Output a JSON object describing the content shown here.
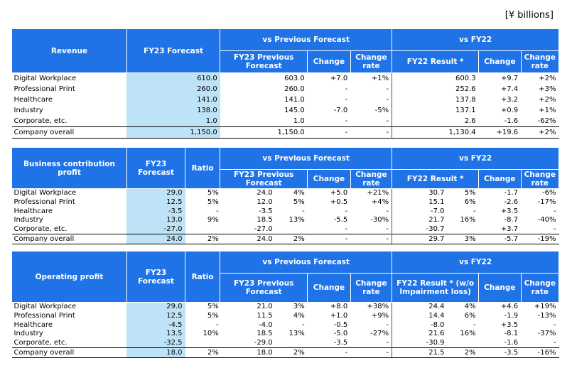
{
  "unit_label": "[¥ billions]",
  "headers": {
    "fy23_forecast": "FY23 Forecast",
    "ratio": "Ratio",
    "vs_prev": "vs Previous Forecast",
    "vs_fy22": "vs FY22",
    "fy23_prev_forecast": "FY23 Previous Forecast",
    "change": "Change",
    "change_rate": "Change rate",
    "fy22_result": "FY22 Result *",
    "fy22_result_wo": "FY22 Result * (w/o Impairment loss)"
  },
  "revenue": {
    "title": "Revenue",
    "rows": [
      {
        "name": "Digital Workplace",
        "fy23": "610.0",
        "prev": "603.0",
        "chg": "+7.0",
        "rate": "+1%",
        "fy22": "600.3",
        "chg2": "+9.7",
        "rate2": "+2%"
      },
      {
        "name": "Professional Print",
        "fy23": "260.0",
        "prev": "260.0",
        "chg": "-",
        "rate": "-",
        "fy22": "252.6",
        "chg2": "+7.4",
        "rate2": "+3%"
      },
      {
        "name": "Healthcare",
        "fy23": "141.0",
        "prev": "141.0",
        "chg": "-",
        "rate": "-",
        "fy22": "137.8",
        "chg2": "+3.2",
        "rate2": "+2%"
      },
      {
        "name": "Industry",
        "fy23": "138.0",
        "prev": "145.0",
        "chg": "-7.0",
        "rate": "-5%",
        "fy22": "137.1",
        "chg2": "+0.9",
        "rate2": "+1%"
      },
      {
        "name": "Corporate, etc.",
        "fy23": "1.0",
        "prev": "1.0",
        "chg": "-",
        "rate": "-",
        "fy22": "2.6",
        "chg2": "-1.6",
        "rate2": "-62%"
      },
      {
        "name": "Company overall",
        "fy23": "1,150.0",
        "prev": "1,150.0",
        "chg": "-",
        "rate": "-",
        "fy22": "1,130.4",
        "chg2": "+19.6",
        "rate2": "+2%"
      }
    ]
  },
  "bcp": {
    "title": "Business contribution profit",
    "rows": [
      {
        "name": "Digital Workplace",
        "fy23": "29.0",
        "ratio": "5%",
        "prev": "24.0",
        "prat": "4%",
        "chg": "+5.0",
        "rate": "+21%",
        "fy22": "30.7",
        "fy22r": "5%",
        "chg2": "-1.7",
        "rate2": "-6%"
      },
      {
        "name": "Professional Print",
        "fy23": "12.5",
        "ratio": "5%",
        "prev": "12.0",
        "prat": "5%",
        "chg": "+0.5",
        "rate": "+4%",
        "fy22": "15.1",
        "fy22r": "6%",
        "chg2": "-2.6",
        "rate2": "-17%"
      },
      {
        "name": "Healthcare",
        "fy23": "-3.5",
        "ratio": "-",
        "prev": "-3.5",
        "prat": "-",
        "chg": "-",
        "rate": "-",
        "fy22": "-7.0",
        "fy22r": "-",
        "chg2": "+3.5",
        "rate2": "-"
      },
      {
        "name": "Industry",
        "fy23": "13.0",
        "ratio": "9%",
        "prev": "18.5",
        "prat": "13%",
        "chg": "-5.5",
        "rate": "-30%",
        "fy22": "21.7",
        "fy22r": "16%",
        "chg2": "-8.7",
        "rate2": "-40%"
      },
      {
        "name": "Corporate, etc.",
        "fy23": "-27.0",
        "ratio": "",
        "prev": "-27.0",
        "prat": "",
        "chg": "-",
        "rate": "-",
        "fy22": "-30.7",
        "fy22r": "",
        "chg2": "+3.7",
        "rate2": "-"
      },
      {
        "name": "Company overall",
        "fy23": "24.0",
        "ratio": "2%",
        "prev": "24.0",
        "prat": "2%",
        "chg": "-",
        "rate": "-",
        "fy22": "29.7",
        "fy22r": "3%",
        "chg2": "-5.7",
        "rate2": "-19%"
      }
    ]
  },
  "op": {
    "title": "Operating profit",
    "rows": [
      {
        "name": "Digital Workplace",
        "fy23": "29.0",
        "ratio": "5%",
        "prev": "21.0",
        "prat": "3%",
        "chg": "+8.0",
        "rate": "+38%",
        "fy22": "24.4",
        "fy22r": "4%",
        "chg2": "+4.6",
        "rate2": "+19%"
      },
      {
        "name": "Professional Print",
        "fy23": "12.5",
        "ratio": "5%",
        "prev": "11.5",
        "prat": "4%",
        "chg": "+1.0",
        "rate": "+9%",
        "fy22": "14.4",
        "fy22r": "6%",
        "chg2": "-1.9",
        "rate2": "-13%"
      },
      {
        "name": "Healthcare",
        "fy23": "-4.5",
        "ratio": "-",
        "prev": "-4.0",
        "prat": "-",
        "chg": "-0.5",
        "rate": "-",
        "fy22": "-8.0",
        "fy22r": "-",
        "chg2": "+3.5",
        "rate2": "-"
      },
      {
        "name": "Industry",
        "fy23": "13.5",
        "ratio": "10%",
        "prev": "18.5",
        "prat": "13%",
        "chg": "-5.0",
        "rate": "-27%",
        "fy22": "21.6",
        "fy22r": "16%",
        "chg2": "-8.1",
        "rate2": "-37%"
      },
      {
        "name": "Corporate, etc.",
        "fy23": "-32.5",
        "ratio": "",
        "prev": "-29.0",
        "prat": "",
        "chg": "-3.5",
        "rate": "-",
        "fy22": "-30.9",
        "fy22r": "",
        "chg2": "-1.6",
        "rate2": "-"
      },
      {
        "name": "Company overall",
        "fy23": "18.0",
        "ratio": "2%",
        "prev": "18.0",
        "prat": "2%",
        "chg": "-",
        "rate": "-",
        "fy22": "21.5",
        "fy22r": "2%",
        "chg2": "-3.5",
        "rate2": "-16%"
      }
    ]
  }
}
